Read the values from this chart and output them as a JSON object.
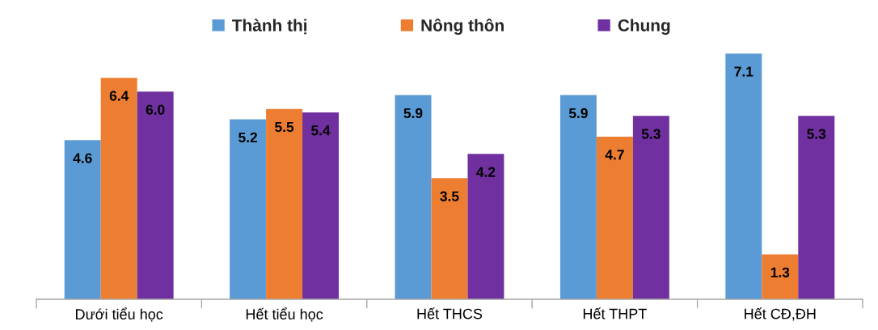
{
  "chart_data": {
    "type": "bar",
    "categories": [
      "Dưới tiểu học",
      "Hết tiểu học",
      "Hết THCS",
      "Hết THPT",
      "Hết CĐ,ĐH"
    ],
    "series": [
      {
        "name": "Thành thị",
        "color": "#5b9bd5",
        "values": [
          4.6,
          5.2,
          5.9,
          5.9,
          7.1
        ],
        "value_labels": [
          "4.6",
          "5.2",
          "5.9",
          "5.9",
          "7.1"
        ]
      },
      {
        "name": "Nông thôn",
        "color": "#ed7d31",
        "values": [
          6.4,
          5.5,
          3.5,
          4.7,
          1.3
        ],
        "value_labels": [
          "6.4",
          "5.5",
          "3.5",
          "4.7",
          "1.3"
        ]
      },
      {
        "name": "Chung",
        "color": "#7030a0",
        "values": [
          6.0,
          5.4,
          4.2,
          5.3,
          5.3
        ],
        "value_labels": [
          "6.0",
          "5.4",
          "4.2",
          "5.3",
          "5.3"
        ]
      }
    ],
    "legend": "top",
    "tick_labels": "x"
  }
}
